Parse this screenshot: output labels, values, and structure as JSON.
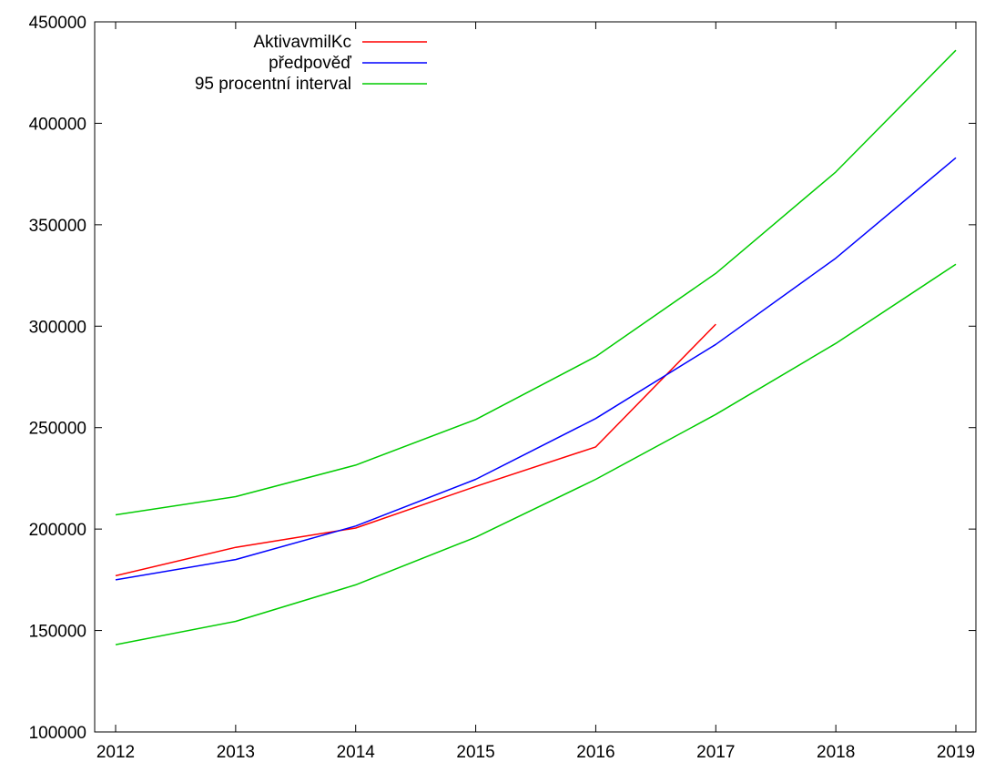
{
  "chart_data": {
    "type": "line",
    "title": "",
    "xlabel": "",
    "ylabel": "",
    "xlim": [
      2012,
      2019
    ],
    "ylim": [
      100000,
      450000
    ],
    "x_ticks": [
      "2012",
      "2013",
      "2014",
      "2015",
      "2016",
      "2017",
      "2018",
      "2019"
    ],
    "y_ticks": [
      "100000",
      "150000",
      "200000",
      "250000",
      "300000",
      "350000",
      "400000",
      "450000"
    ],
    "grid": false,
    "legend_position": "top-left",
    "series": [
      {
        "name": "AktivavmilKc",
        "color": "#ff0000",
        "x": [
          2012,
          2013,
          2014,
          2015,
          2016,
          2017
        ],
        "y": [
          177000,
          191000,
          200500,
          221000,
          240500,
          301000
        ]
      },
      {
        "name": "předpověď",
        "color": "#0000ff",
        "x": [
          2012,
          2013,
          2014,
          2015,
          2016,
          2017,
          2018,
          2019
        ],
        "y": [
          175000,
          185000,
          201500,
          224500,
          254500,
          291000,
          333500,
          383000
        ]
      },
      {
        "name": "95 procentní interval",
        "color": "#00cc00",
        "x": [
          2012,
          2013,
          2014,
          2015,
          2016,
          2017,
          2018,
          2019
        ],
        "y": [
          207000,
          216000,
          231500,
          254000,
          285000,
          326000,
          376000,
          436000
        ]
      },
      {
        "name": "",
        "color": "#00cc00",
        "x": [
          2012,
          2013,
          2014,
          2015,
          2016,
          2017,
          2018,
          2019
        ],
        "y": [
          143000,
          154500,
          172500,
          196000,
          224500,
          256500,
          291500,
          330500
        ]
      }
    ]
  }
}
